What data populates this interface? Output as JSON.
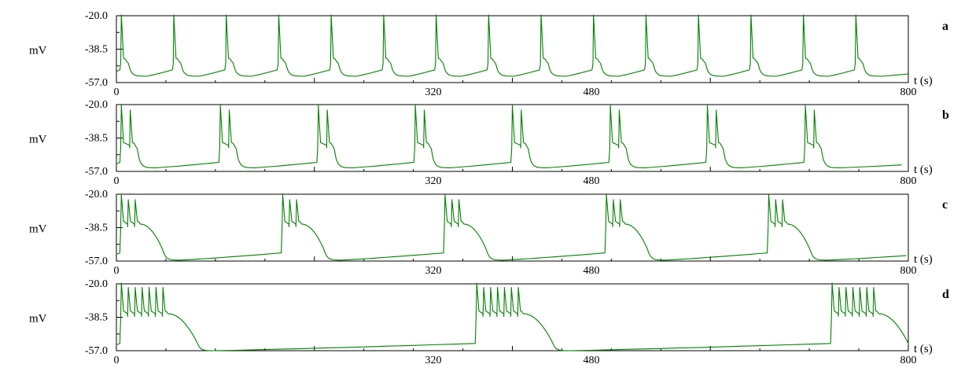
{
  "chart_data": [
    {
      "panel": "a",
      "type": "line",
      "ylabel": "mV",
      "xlabel": "t (s)",
      "yticks": [
        "-20.0",
        "-38.5",
        "-57.0"
      ],
      "xticks": [
        "0",
        "320",
        "480",
        "800"
      ],
      "ylim": [
        -57.0,
        -20.0
      ],
      "xlim": [
        0,
        800
      ],
      "pattern": "single spike bursts",
      "series": [
        {
          "spikes_per_burst": 1,
          "burst_onsets": [
            5,
            58,
            111,
            164,
            217,
            270,
            323,
            376,
            429,
            482,
            535,
            588,
            641,
            694,
            747
          ],
          "intra_spike_interval": 0,
          "plateau_duration": 9,
          "rest_min": -53.5,
          "pre_burst_level": -50.0,
          "burst_base": -45.0,
          "spike_peak": -22.0,
          "plateau_end": -50.0
        }
      ]
    },
    {
      "panel": "b",
      "type": "line",
      "ylabel": "mV",
      "xlabel": "t (s)",
      "yticks": [
        "-20.0",
        "-38.5",
        "-57.0"
      ],
      "xticks": [
        "0",
        "320",
        "480",
        "800"
      ],
      "ylim": [
        -57.0,
        -20.0
      ],
      "xlim": [
        0,
        800
      ],
      "pattern": "two-spike bursts",
      "series": [
        {
          "spikes_per_burst": 2,
          "burst_onsets": [
            5,
            105,
            204,
            302,
            400,
            499,
            597,
            696
          ],
          "intra_spike_interval": 9,
          "plateau_duration": 18,
          "rest_min": -55.0,
          "pre_burst_level": -52.0,
          "burst_base": -42.5,
          "spike_peak": -23.0,
          "plateau_end": -50.0
        }
      ]
    },
    {
      "panel": "c",
      "type": "line",
      "ylabel": "mV",
      "xlabel": "t (s)",
      "yticks": [
        "-20.0",
        "-38.5",
        "-57.0"
      ],
      "xticks": [
        "0",
        "320",
        "480",
        "800"
      ],
      "ylim": [
        -57.0,
        -20.0
      ],
      "xlim": [
        0,
        800
      ],
      "pattern": "three-spike bursts",
      "series": [
        {
          "spikes_per_burst": 3,
          "burst_onsets": [
            5,
            168,
            332,
            495,
            659
          ],
          "intra_spike_interval": 7,
          "plateau_duration": 42,
          "rest_min": -56.5,
          "pre_burst_level": -52.5,
          "burst_base": -36.5,
          "spike_peak": -23.0,
          "plateau_end": -51.0
        }
      ]
    },
    {
      "panel": "d",
      "type": "line",
      "ylabel": "mV",
      "xlabel": "t (s)",
      "yticks": [
        "-20.0",
        "-38.5",
        "-57.0"
      ],
      "xticks": [
        "0",
        "320",
        "480",
        "800"
      ],
      "ylim": [
        -57.0,
        -20.0
      ],
      "xlim": [
        0,
        800
      ],
      "pattern": "seven-spike bursts",
      "series": [
        {
          "spikes_per_burst": 7,
          "burst_onsets": [
            5,
            364,
            723
          ],
          "intra_spike_interval": 7,
          "plateau_duration": 77,
          "rest_min": -57.0,
          "pre_burst_level": -53.0,
          "burst_base": -36.5,
          "spike_peak": -22.0,
          "plateau_end": -53.0
        }
      ]
    }
  ],
  "colors": {
    "trace": "#008000",
    "axes": "#000000"
  }
}
